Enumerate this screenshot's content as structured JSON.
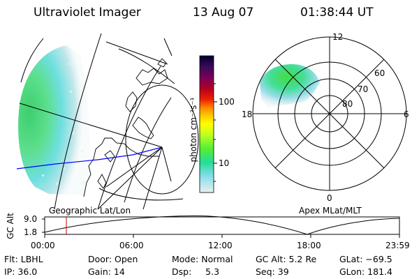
{
  "header": {
    "instrument": "Ultraviolet Imager",
    "date": "13 Aug 07",
    "time": "01:38:44 UT"
  },
  "colorbar": {
    "unit_label": "photon cm⁻²s⁻¹",
    "ticks": [
      "100",
      "10"
    ],
    "colors": [
      "#000033",
      "#1a0a40",
      "#5a005a",
      "#990033",
      "#cc0000",
      "#ff4400",
      "#ff9900",
      "#ffcc00",
      "#ffff00",
      "#ccff33",
      "#88ff33",
      "#33dd55",
      "#33ddbb",
      "#99ddee",
      "#ddeeee"
    ]
  },
  "polar": {
    "labels": [
      "12",
      "18",
      "6",
      "0",
      "60",
      "70",
      "80"
    ]
  },
  "map_labels": {
    "left": "Geographic Lat/Lon",
    "right": "Apex MLat/MLT"
  },
  "altitude_plot": {
    "axis_title": "GC Alt",
    "y_ticks": [
      "9.0",
      "1.8"
    ],
    "x_ticks": [
      "00:00",
      "06:00",
      "12:00",
      "18:00",
      "23:59"
    ]
  },
  "status": {
    "row1": [
      "Flt: LBHL",
      "Door: Open",
      "Mode: Normal",
      "GC Alt: 5.2 Re",
      "GLat: −69.5"
    ],
    "row2": [
      "IP: 36.0",
      "Gain: 14",
      "Dsp:     5.3",
      "Seq: 39",
      "GLon: 181.4"
    ]
  }
}
